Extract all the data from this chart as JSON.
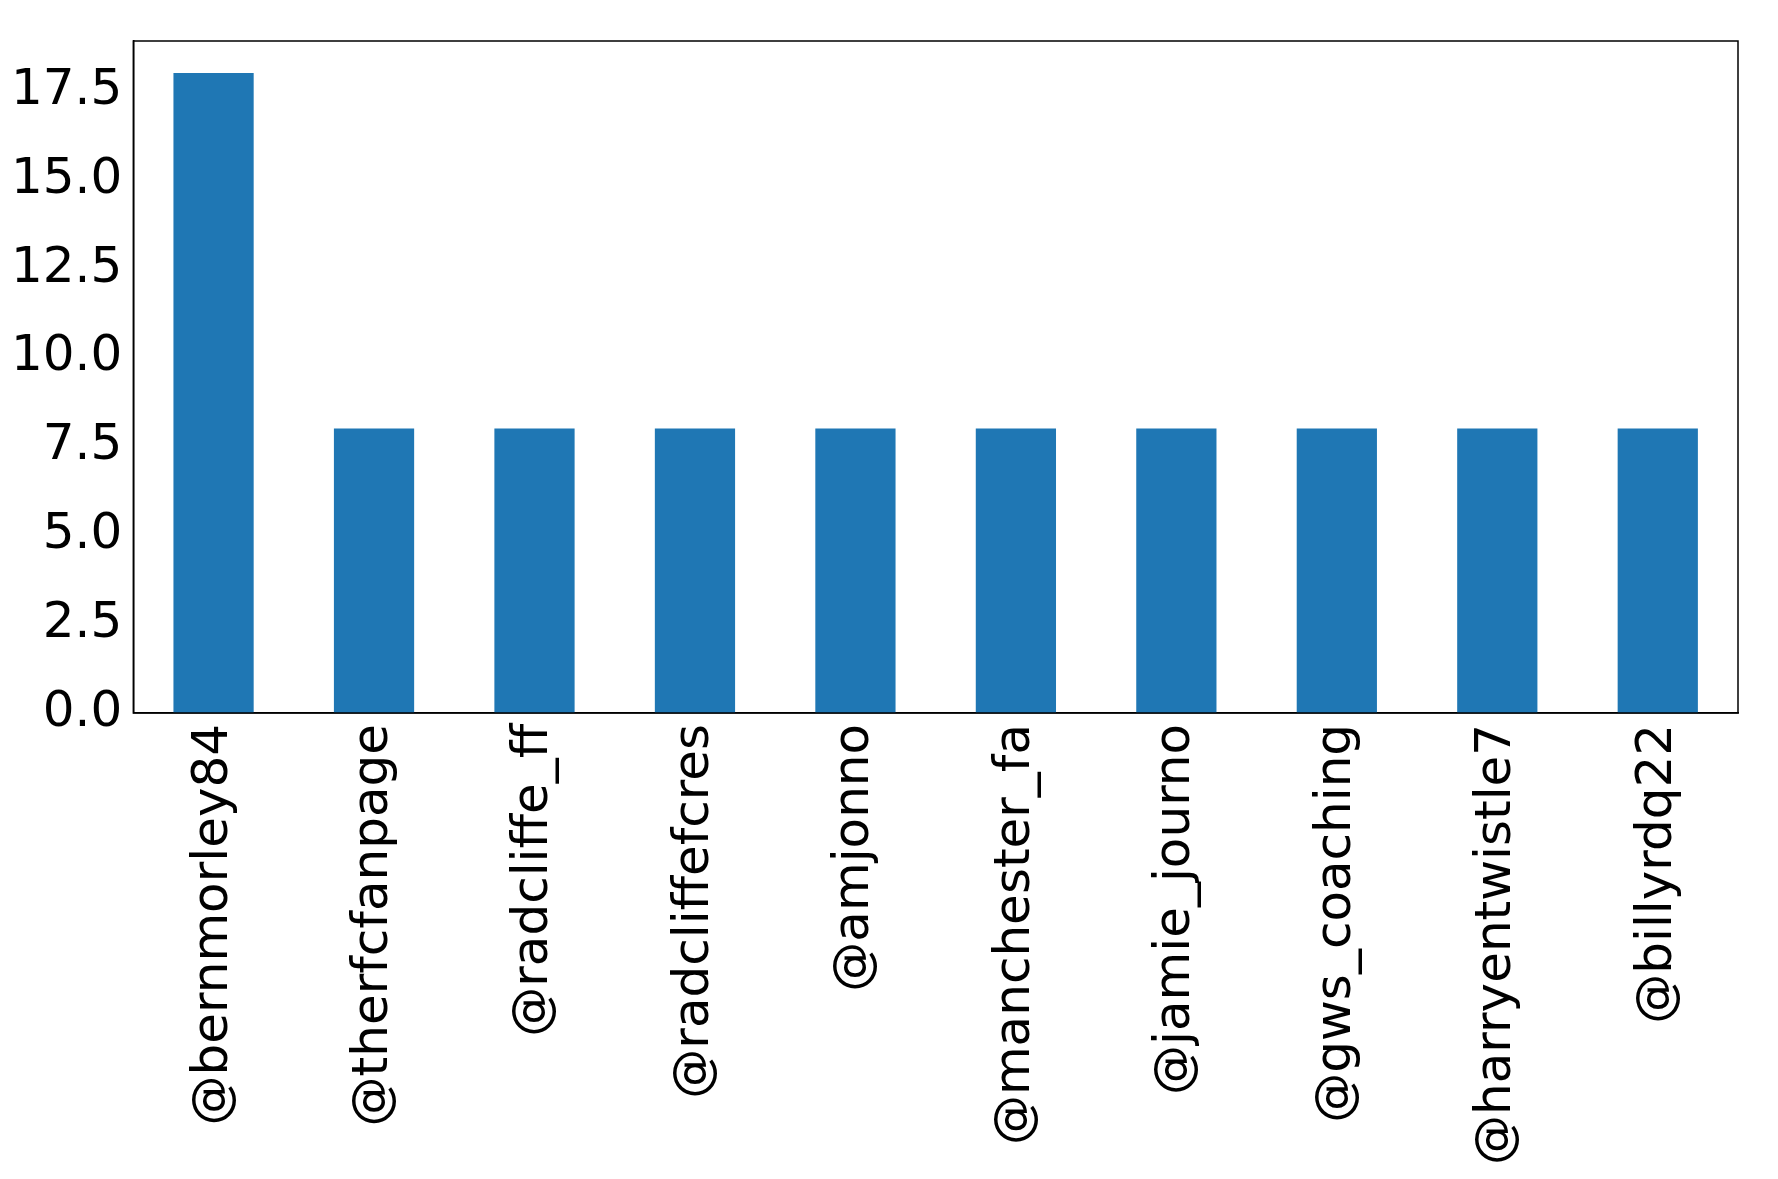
{
  "chart_data": {
    "type": "bar",
    "categories": [
      "@bernmorley84",
      "@therfcfanpage",
      "@radcliffe_ff",
      "@radcliffefcres",
      "@amjonno",
      "@manchester_fa",
      "@jamie_journo",
      "@gws_coaching",
      "@harryentwistle7",
      "@billyrdq22"
    ],
    "values": [
      18,
      8,
      8,
      8,
      8,
      8,
      8,
      8,
      8,
      8
    ],
    "color": "#1f77b4",
    "ylim": [
      0,
      18.9
    ],
    "yticks": [
      {
        "value": 0,
        "label": "0.0"
      },
      {
        "value": 2.5,
        "label": "2.5"
      },
      {
        "value": 5,
        "label": "5.0"
      },
      {
        "value": 7.5,
        "label": "7.5"
      },
      {
        "value": 10,
        "label": "10.0"
      },
      {
        "value": 12.5,
        "label": "12.5"
      },
      {
        "value": 15,
        "label": "15.0"
      },
      {
        "value": 17.5,
        "label": "17.5"
      }
    ],
    "grid": false,
    "legend": false
  }
}
